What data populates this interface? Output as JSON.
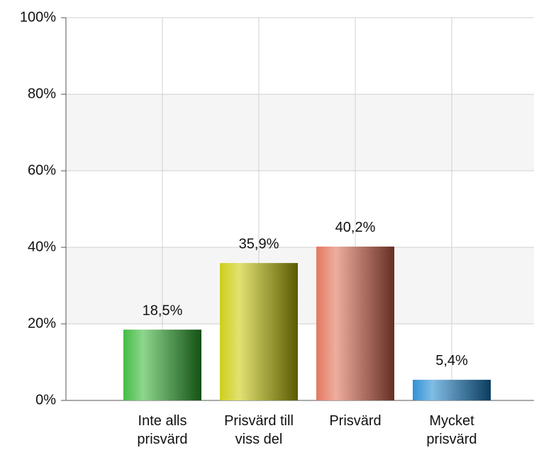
{
  "chart_data": {
    "type": "bar",
    "categories": [
      "Inte alls prisvärd",
      "Prisvärd till viss del",
      "Prisvärd",
      "Mycket prisvärd"
    ],
    "values": [
      18.5,
      35.9,
      40.2,
      5.4
    ],
    "value_labels": [
      "18,5%",
      "35,9%",
      "40,2%",
      "5,4%"
    ],
    "colors": [
      "#2fb52f",
      "#c8c800",
      "#e0694e",
      "#1a86d0"
    ],
    "ylim": [
      0,
      100
    ],
    "yticks": [
      {
        "value": 0,
        "label": "0%"
      },
      {
        "value": 20,
        "label": "20%"
      },
      {
        "value": 40,
        "label": "40%"
      },
      {
        "value": 60,
        "label": "60%"
      },
      {
        "value": 80,
        "label": "80%"
      },
      {
        "value": 100,
        "label": "100%"
      }
    ],
    "grid": true
  }
}
